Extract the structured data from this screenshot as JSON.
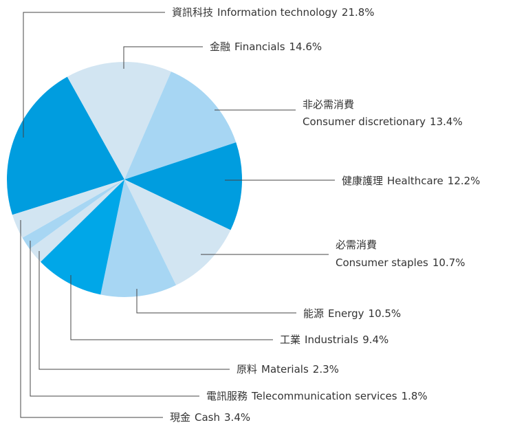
{
  "chart_data": {
    "type": "pie",
    "categories_zh": [
      "資訊科技",
      "金融",
      "非必需消費",
      "健康護理",
      "必需消費",
      "能源",
      "工業",
      "原料",
      "電訊服務",
      "現金"
    ],
    "categories": [
      "Information technology",
      "Financials",
      "Consumer discretionary",
      "Healthcare",
      "Consumer staples",
      "Energy",
      "Industrials",
      "Materials",
      "Telecommunication services",
      "Cash"
    ],
    "values": [
      21.8,
      14.6,
      13.4,
      12.2,
      10.7,
      10.5,
      9.4,
      2.3,
      1.8,
      3.4
    ],
    "value_labels": [
      "21.8%",
      "14.6%",
      "13.4%",
      "12.2%",
      "10.7%",
      "10.5%",
      "9.4%",
      "2.3%",
      "1.8%",
      "3.4%"
    ],
    "colors": [
      "#009ddf",
      "#d2e5f2",
      "#a7d6f3",
      "#009ddf",
      "#d2e5f2",
      "#a7d6f3",
      "#00a7e8",
      "#d2e5f2",
      "#a7d6f3",
      "#d2e5f2"
    ]
  }
}
